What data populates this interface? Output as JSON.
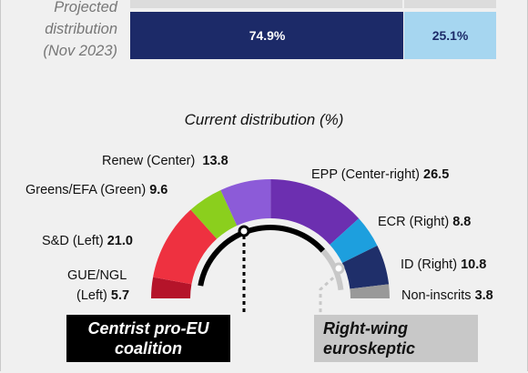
{
  "projected": {
    "label_lines": [
      "Projected",
      "distribution",
      "(Nov 2023)"
    ],
    "segments": [
      {
        "value": 74.9,
        "label": "74.9%",
        "color": "#1c2a68",
        "text_color": "#ffffff"
      },
      {
        "value": 25.1,
        "label": "25.1%",
        "color": "#a6d6f0",
        "text_color": "#1c2a68"
      }
    ]
  },
  "chart_data": {
    "type": "pie",
    "title": "Current distribution (%)",
    "slices": [
      {
        "name": "GUE/NGL (Left)",
        "value": 5.7,
        "color": "#b5142a"
      },
      {
        "name": "S&D (Left)",
        "value": 21.0,
        "color": "#ee3140"
      },
      {
        "name": "Greens/EFA (Green)",
        "value": 9.6,
        "color": "#8bcf1d"
      },
      {
        "name": "Renew (Center)",
        "value": 13.8,
        "color": "#8c5bd8"
      },
      {
        "name": "EPP (Center-right)",
        "value": 26.5,
        "color": "#6c2fb0"
      },
      {
        "name": "ECR (Right)",
        "value": 8.8,
        "color": "#1d9fde"
      },
      {
        "name": "ID (Right)",
        "value": 10.8,
        "color": "#1f2f6a"
      },
      {
        "name": "Non-inscrits",
        "value": 3.8,
        "color": "#999999"
      }
    ]
  },
  "labels": {
    "gue_1": "GUE/NGL",
    "gue_2": "(Left)",
    "gue_val": "5.7",
    "sd": "S&D (Left)",
    "sd_val": "21.0",
    "greens": "Greens/EFA (Green)",
    "greens_val": "9.6",
    "renew": "Renew (Center)",
    "renew_val": "13.8",
    "epp": "EPP (Center-right)",
    "epp_val": "26.5",
    "ecr": "ECR (Right)",
    "ecr_val": "8.8",
    "id": "ID (Right)",
    "id_val": "10.8",
    "ni": "Non-inscrits",
    "ni_val": "3.8"
  },
  "coalitions": {
    "centrist": {
      "line1": "Centrist pro-EU",
      "line2": "coalition",
      "bg": "#000000",
      "fg": "#ffffff"
    },
    "right": {
      "line1": "Right-wing",
      "line2": "euroskeptic",
      "bg": "#c8c8c8",
      "fg": "#111111"
    }
  }
}
